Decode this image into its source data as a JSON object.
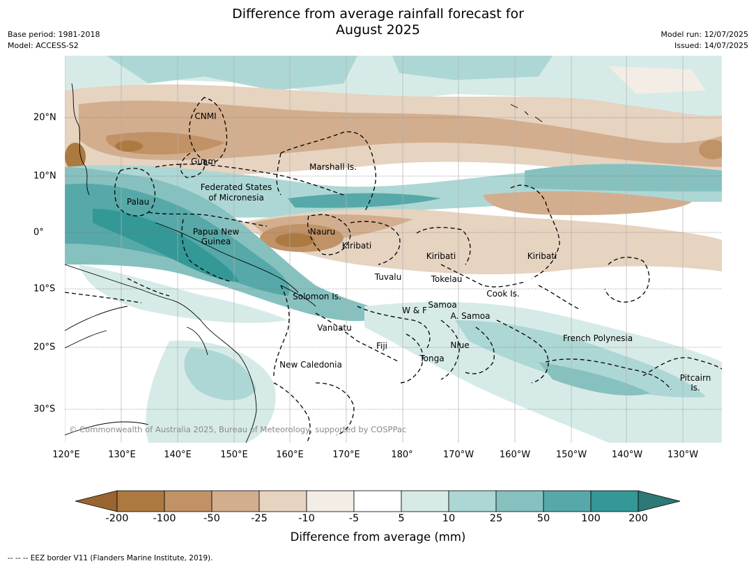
{
  "title_line1": "Difference from average rainfall forecast for",
  "title_line2": "August 2025",
  "base_period": "Base period: 1981-2018",
  "model": "Model: ACCESS-S2",
  "model_run": "Model run: 12/07/2025",
  "issued": "Issued: 14/07/2025",
  "copyright": "© Commonwealth of Australia 2025, Bureau of Meteorology, supported by COSPPac",
  "lon_ticks": [
    "120°E",
    "130°E",
    "140°E",
    "150°E",
    "160°E",
    "170°E",
    "180°",
    "170°W",
    "160°W",
    "150°W",
    "140°W",
    "130°W"
  ],
  "lat_ticks": [
    "20°N",
    "10°N",
    "0°",
    "10°S",
    "20°S",
    "30°S"
  ],
  "region_labels": {
    "cnmi": "CNMI",
    "guam": "Guam",
    "marshall": "Marshall Is.",
    "fsm1": "Federated States",
    "fsm2": "of Micronesia",
    "palau": "Palau",
    "png1": "Papua New",
    "png2": "Guinea",
    "nauru": "Nauru",
    "kiribati_w": "Kiribati",
    "kiribati_c": "Kiribati",
    "kiribati_e": "Kiribati",
    "tuvalu": "Tuvalu",
    "tokelau": "Tokelau",
    "cook": "Cook Is.",
    "solomon": "Solomon Is.",
    "wf": "W & F",
    "samoa": "Samoa",
    "asamoa": "A. Samoa",
    "vanuatu": "Vanuatu",
    "fiji": "Fiji",
    "niue": "Niue",
    "tonga": "Tonga",
    "frenchpoly": "French Polynesia",
    "newcal": "New Caledonia",
    "pitcairn1": "Pitcairn",
    "pitcairn2": "Is."
  },
  "colorbar": {
    "colors": [
      "#9a6430",
      "#ac7941",
      "#c09266",
      "#d2ae8e",
      "#e6d3c0",
      "#f3ede5",
      "#ffffff",
      "#d6ebe8",
      "#add7d4",
      "#86c1c0",
      "#56a9a8",
      "#339896",
      "#2e7878"
    ],
    "ticks": [
      "-200",
      "-100",
      "-50",
      "-25",
      "-10",
      "-5",
      "5",
      "10",
      "25",
      "50",
      "100",
      "200"
    ],
    "label": "Difference from average (mm)"
  },
  "footnote": "--  --  -- EEZ border V11 (Flanders Marine Institute, 2019)."
}
